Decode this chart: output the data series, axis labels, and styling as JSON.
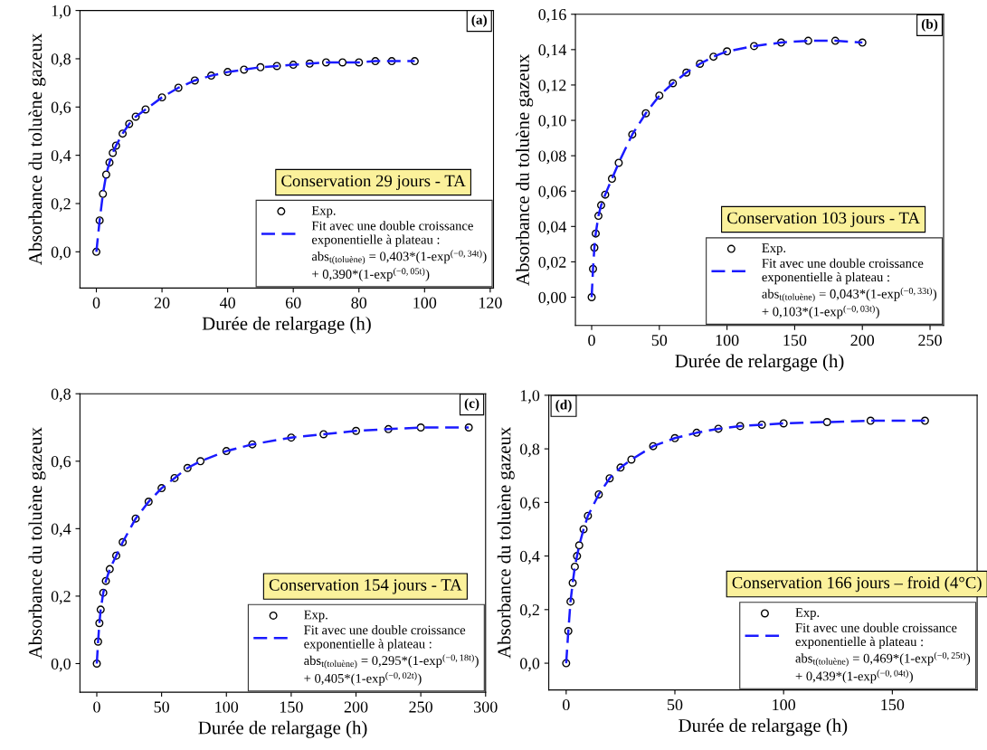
{
  "chart_data": [
    {
      "type": "line",
      "title": "(a)",
      "xlabel": "Durée de relargage (h)",
      "ylabel": "Absorbance du toluène gazeux",
      "legend_title": "Conservation 29 jours - TA",
      "annotations": [
        "abs$_{t(toluène)}$ = 0,403*(1-exp$^{(−0,34t)}$)",
        "+ 0,390*(1-exp$^{(−0,05t)}$)"
      ],
      "x": [
        0,
        1,
        2,
        3,
        4,
        5,
        6,
        8,
        10,
        12,
        15,
        20,
        25,
        30,
        35,
        40,
        45,
        50,
        55,
        60,
        65,
        70,
        75,
        80,
        85,
        90,
        97
      ],
      "series": [
        {
          "name": "Exp.",
          "type": "scatter",
          "marker": "circle",
          "color": "#000000",
          "values": [
            0,
            0.13,
            0.24,
            0.32,
            0.37,
            0.41,
            0.44,
            0.49,
            0.53,
            0.56,
            0.59,
            0.64,
            0.68,
            0.71,
            0.73,
            0.745,
            0.755,
            0.765,
            0.77,
            0.775,
            0.78,
            0.785,
            0.785,
            0.785,
            0.79,
            0.79,
            0.79
          ]
        },
        {
          "name": "Fit avec une double croissance\nexponentielle à plateau :",
          "color": "#1a1aff",
          "values": [
            0,
            0.13,
            0.24,
            0.32,
            0.37,
            0.41,
            0.44,
            0.49,
            0.53,
            0.56,
            0.59,
            0.64,
            0.68,
            0.71,
            0.73,
            0.745,
            0.755,
            0.765,
            0.77,
            0.775,
            0.78,
            0.785,
            0.785,
            0.785,
            0.79,
            0.79,
            0.79
          ]
        }
      ],
      "xlim": [
        -5,
        121
      ],
      "ylim": [
        -0.15,
        1.0
      ],
      "xticks": [
        0,
        20,
        40,
        60,
        80,
        100,
        120
      ],
      "yticks": [
        {
          "value": 0,
          "label": "0,0"
        },
        {
          "value": 0.2,
          "label": "0,2"
        },
        {
          "value": 0.4,
          "label": "0,4"
        },
        {
          "value": 0.6,
          "label": "0,6"
        },
        {
          "value": 0.8,
          "label": "0,8"
        },
        {
          "value": 1.0,
          "label": "1,0"
        }
      ],
      "legend": "bottom right",
      "line_style": "dashed",
      "grid": false
    },
    {
      "type": "line",
      "title": "(b)",
      "xlabel": "Durée de relargage (h)",
      "ylabel": "Absorbance du toluène gazeux",
      "legend_title": "Conservation 103 jours - TA",
      "annotations": [
        "abs$_{t(toluène)}$ = 0,043*(1-exp$^{(−0,33t)}$)",
        "+ 0,103*(1-exp$^{(−0,03t)}$)"
      ],
      "x": [
        0,
        1,
        2,
        3,
        5,
        7,
        10,
        15,
        20,
        30,
        40,
        50,
        60,
        70,
        80,
        90,
        100,
        120,
        140,
        160,
        180,
        200
      ],
      "series": [
        {
          "name": "Exp.",
          "type": "scatter",
          "marker": "circle",
          "color": "#000000",
          "values": [
            0,
            0.016,
            0.028,
            0.036,
            0.046,
            0.052,
            0.058,
            0.067,
            0.076,
            0.092,
            0.104,
            0.114,
            0.121,
            0.127,
            0.132,
            0.136,
            0.139,
            0.142,
            0.144,
            0.145,
            0.145,
            0.144
          ]
        },
        {
          "name": "Fit avec une double croissance\nexponentielle à plateau :",
          "color": "#1a1aff",
          "values": [
            0,
            0.016,
            0.028,
            0.036,
            0.046,
            0.052,
            0.058,
            0.067,
            0.076,
            0.092,
            0.104,
            0.114,
            0.121,
            0.127,
            0.132,
            0.136,
            0.139,
            0.142,
            0.144,
            0.145,
            0.145,
            0.144
          ]
        }
      ],
      "xlim": [
        -12,
        260
      ],
      "ylim": [
        -0.016,
        0.16
      ],
      "xticks": [
        0,
        50,
        100,
        150,
        200,
        250
      ],
      "yticks": [
        {
          "value": 0,
          "label": "0,00"
        },
        {
          "value": 0.02,
          "label": "0,02"
        },
        {
          "value": 0.04,
          "label": "0,04"
        },
        {
          "value": 0.06,
          "label": "0,06"
        },
        {
          "value": 0.08,
          "label": "0,08"
        },
        {
          "value": 0.1,
          "label": "0,10"
        },
        {
          "value": 0.12,
          "label": "0,12"
        },
        {
          "value": 0.14,
          "label": "0,14"
        },
        {
          "value": 0.16,
          "label": "0,16"
        }
      ],
      "legend": "bottom right",
      "line_style": "dashed",
      "grid": false
    },
    {
      "type": "line",
      "title": "(c)",
      "xlabel": "Durée de relargage (h)",
      "ylabel": "Absorbance du toluène gazeux",
      "legend_title": "Conservation 154 jours - TA",
      "annotations": [
        "abs$_{t(toluène)}$ = 0,295*(1-exp$^{(−0,18t)}$)",
        "+ 0,405*(1-exp$^{(−0,02t)}$)"
      ],
      "x": [
        0,
        1,
        2,
        3,
        5,
        7,
        10,
        15,
        20,
        30,
        40,
        50,
        60,
        70,
        80,
        100,
        120,
        150,
        175,
        200,
        225,
        250,
        287
      ],
      "series": [
        {
          "name": "Exp.",
          "type": "scatter",
          "marker": "circle",
          "color": "#000000",
          "values": [
            0,
            0.065,
            0.12,
            0.16,
            0.21,
            0.245,
            0.28,
            0.32,
            0.36,
            0.43,
            0.48,
            0.52,
            0.55,
            0.58,
            0.6,
            0.63,
            0.65,
            0.67,
            0.68,
            0.69,
            0.695,
            0.7,
            0.7
          ]
        },
        {
          "name": "Fit avec une double croissance\nexponentielle à plateau :",
          "color": "#1a1aff",
          "values": [
            0,
            0.065,
            0.12,
            0.16,
            0.21,
            0.245,
            0.28,
            0.32,
            0.36,
            0.43,
            0.48,
            0.52,
            0.55,
            0.58,
            0.6,
            0.63,
            0.65,
            0.67,
            0.68,
            0.69,
            0.695,
            0.7,
            0.7
          ]
        }
      ],
      "xlim": [
        -13,
        300
      ],
      "ylim": [
        -0.085,
        0.8
      ],
      "xticks": [
        0,
        50,
        100,
        150,
        200,
        250,
        300
      ],
      "yticks": [
        {
          "value": 0,
          "label": "0,0"
        },
        {
          "value": 0.2,
          "label": "0,2"
        },
        {
          "value": 0.4,
          "label": "0,4"
        },
        {
          "value": 0.6,
          "label": "0,6"
        },
        {
          "value": 0.8,
          "label": "0,8"
        }
      ],
      "legend": "bottom right",
      "line_style": "dashed",
      "grid": false
    },
    {
      "type": "line",
      "title": "(d)",
      "xlabel": "Durée de relargage (h)",
      "ylabel": "Absorbance du toluène gazeux",
      "legend_title": "Conservation 166 jours – froid (4°C)",
      "annotations": [
        "abs$_{t(toluène)}$ = 0,469*(1-exp$^{(−0,25t)}$)",
        "+ 0,439*(1-exp$^{(−0,04t)}$)"
      ],
      "x": [
        0,
        1,
        2,
        3,
        4,
        5,
        6,
        8,
        10,
        15,
        20,
        25,
        30,
        40,
        50,
        60,
        70,
        80,
        90,
        100,
        120,
        140,
        165
      ],
      "series": [
        {
          "name": "Exp.",
          "type": "scatter",
          "marker": "circle",
          "color": "#000000",
          "values": [
            0,
            0.12,
            0.23,
            0.3,
            0.36,
            0.4,
            0.44,
            0.5,
            0.55,
            0.63,
            0.69,
            0.73,
            0.76,
            0.81,
            0.84,
            0.86,
            0.875,
            0.885,
            0.89,
            0.895,
            0.9,
            0.905,
            0.905
          ]
        },
        {
          "name": "Fit avec une double croissance\nexponentielle à plateau :",
          "color": "#1a1aff",
          "values": [
            0,
            0.12,
            0.23,
            0.3,
            0.36,
            0.4,
            0.44,
            0.5,
            0.55,
            0.63,
            0.69,
            0.73,
            0.76,
            0.81,
            0.84,
            0.86,
            0.875,
            0.885,
            0.89,
            0.895,
            0.9,
            0.905,
            0.905
          ]
        }
      ],
      "xlim": [
        -8,
        189
      ],
      "ylim": [
        -0.1,
        1.0
      ],
      "xticks": [
        0,
        50,
        100,
        150
      ],
      "yticks": [
        {
          "value": 0,
          "label": "0,0"
        },
        {
          "value": 0.2,
          "label": "0,2"
        },
        {
          "value": 0.4,
          "label": "0,4"
        },
        {
          "value": 0.6,
          "label": "0,6"
        },
        {
          "value": 0.8,
          "label": "0,8"
        },
        {
          "value": 1.0,
          "label": "1,0"
        }
      ],
      "legend": "bottom right",
      "line_style": "dashed",
      "grid": false
    }
  ]
}
